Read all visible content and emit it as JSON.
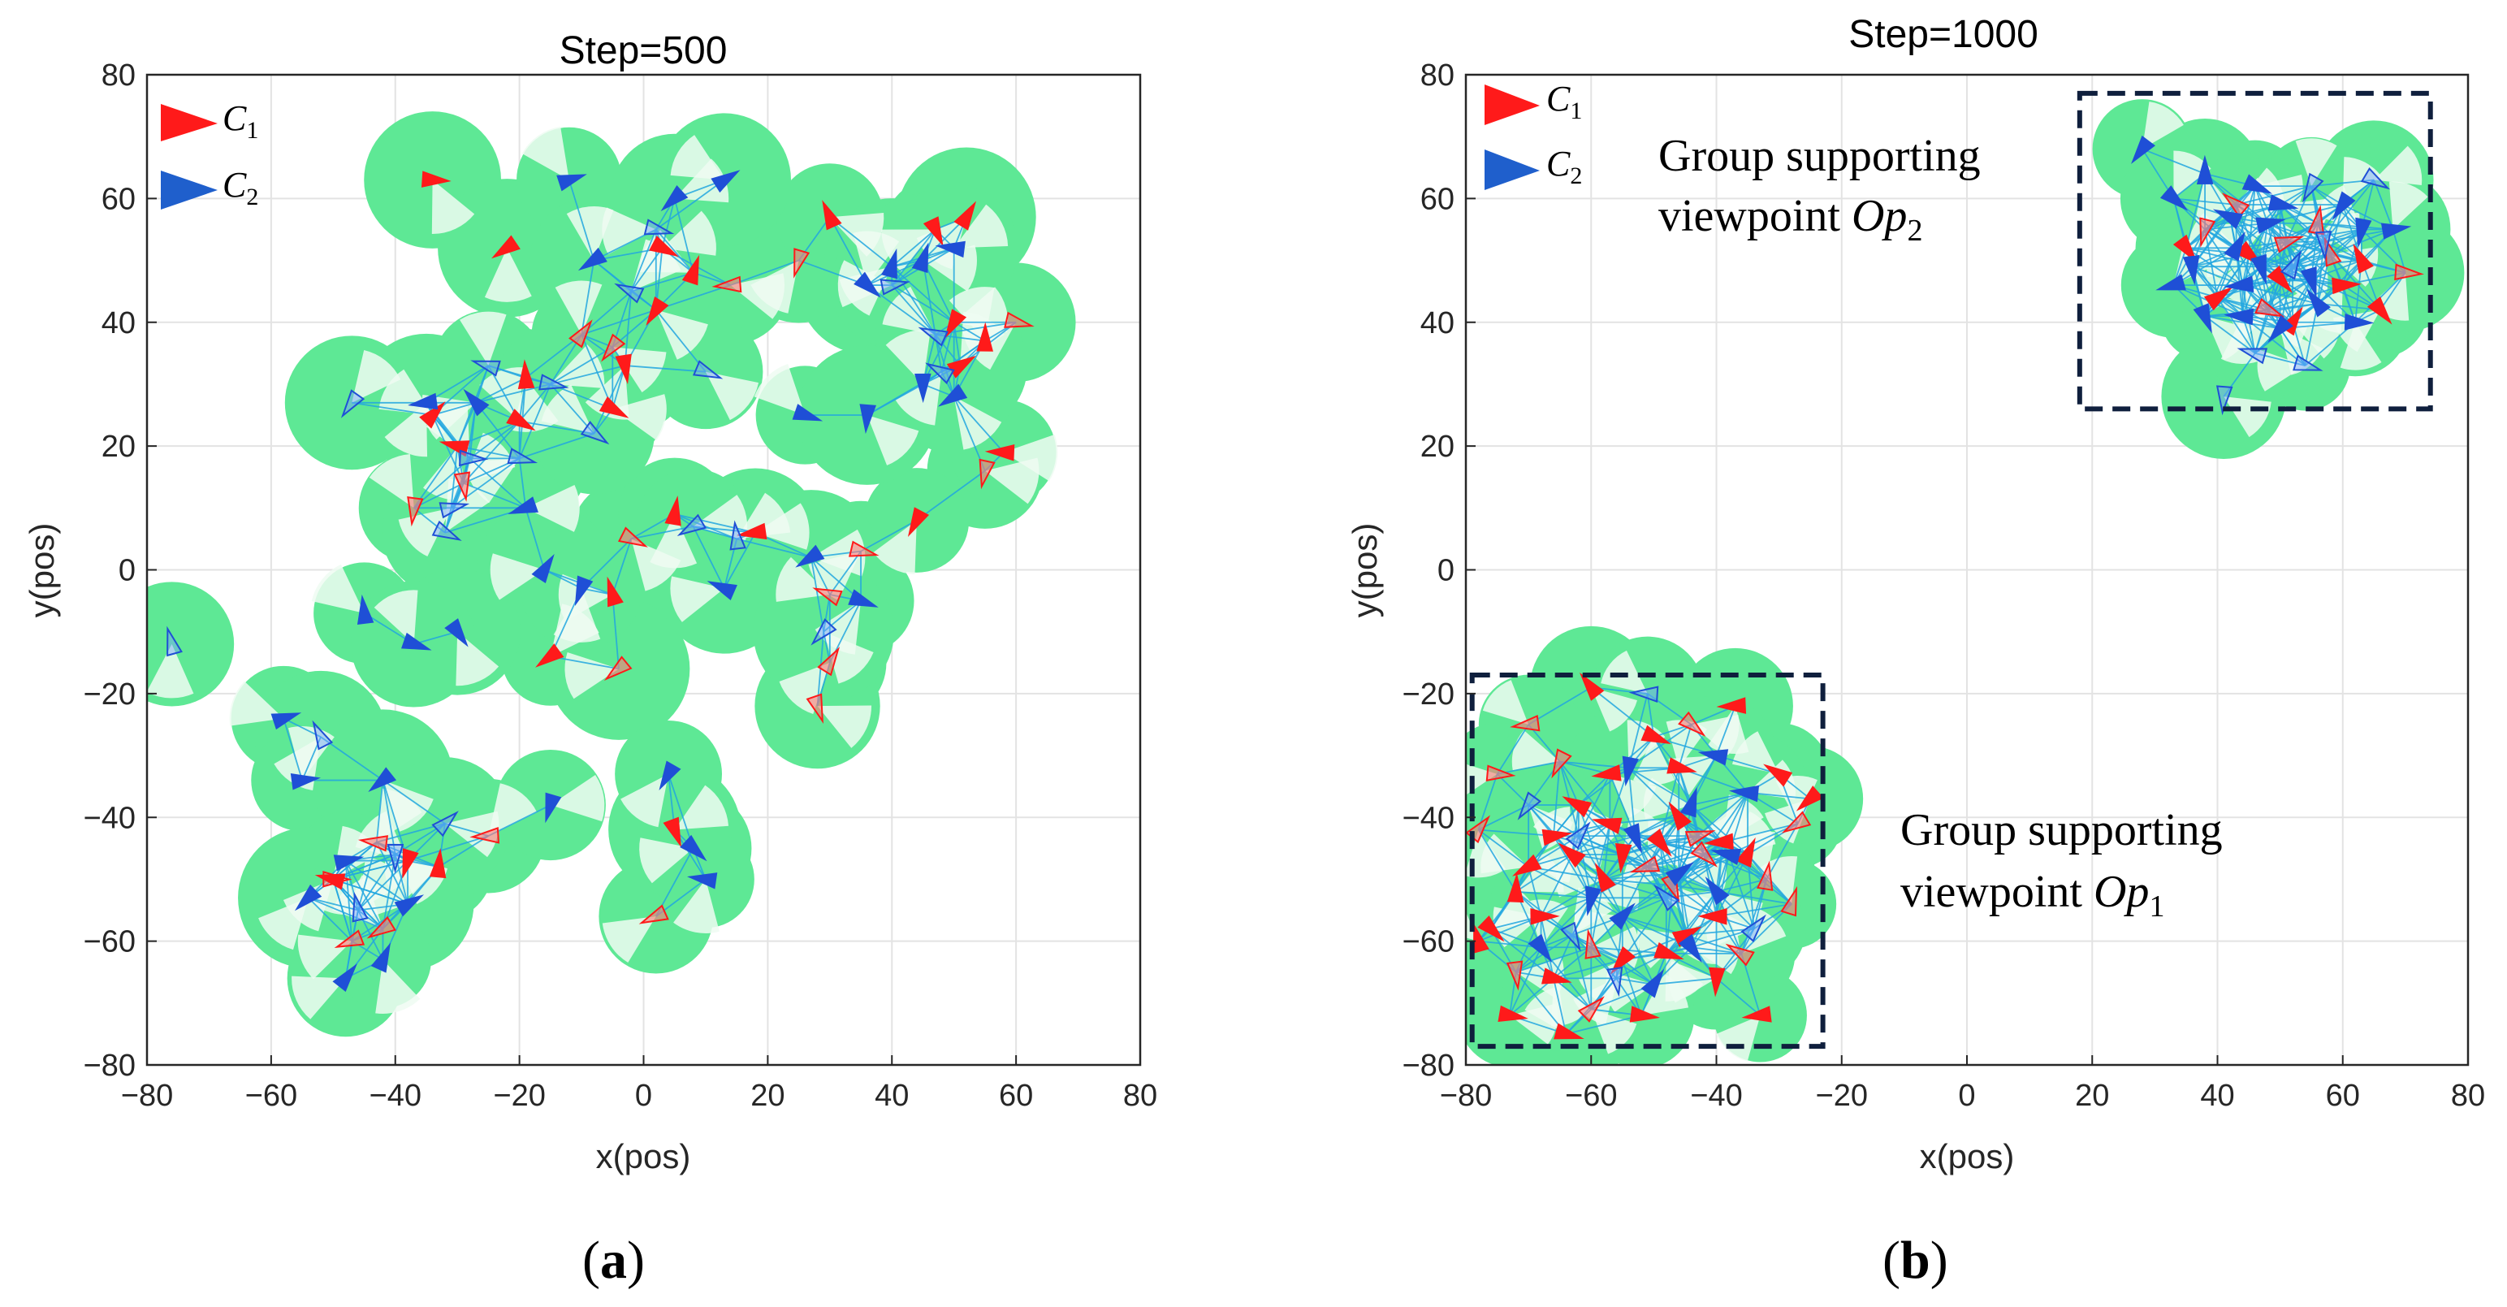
{
  "chart_data": [
    {
      "type": "scatter",
      "panel_label": "(a)",
      "title": "Step=500",
      "xlabel": "x(pos)",
      "ylabel": "y(pos)",
      "xlim": [
        -80,
        80
      ],
      "ylim": [
        -80,
        80
      ],
      "xticks": [
        -80,
        -60,
        -40,
        -20,
        0,
        20,
        40,
        60,
        80
      ],
      "yticks": [
        -80,
        -60,
        -40,
        -20,
        0,
        20,
        40,
        60,
        80
      ],
      "grid": true,
      "legend_position": "top-left",
      "legend": [
        {
          "label": "C",
          "sub": "1",
          "color": "#ff1a1a"
        },
        {
          "label": "C",
          "sub": "2",
          "color": "#1f5fcc"
        }
      ],
      "series": [
        {
          "name": "C1",
          "points": [
            [
              -34,
              63
            ],
            [
              -22,
              52
            ],
            [
              -10,
              38
            ],
            [
              -5,
              36
            ],
            [
              2,
              42
            ],
            [
              3,
              52
            ],
            [
              8,
              48
            ],
            [
              14,
              46
            ],
            [
              25,
              50
            ],
            [
              30,
              57
            ],
            [
              47,
              55
            ],
            [
              52,
              57
            ],
            [
              50,
              40
            ],
            [
              55,
              37
            ],
            [
              60,
              40
            ],
            [
              -20,
              24
            ],
            [
              -30,
              20
            ],
            [
              -29,
              14
            ],
            [
              -37,
              10
            ],
            [
              -34,
              25
            ],
            [
              -19,
              31
            ],
            [
              -3,
              33
            ],
            [
              -5,
              26
            ],
            [
              51,
              33
            ],
            [
              55,
              16
            ],
            [
              58,
              19
            ],
            [
              -2,
              5
            ],
            [
              5,
              9
            ],
            [
              18,
              6
            ],
            [
              30,
              -4
            ],
            [
              35,
              3
            ],
            [
              44,
              8
            ],
            [
              -5,
              -4
            ],
            [
              -15,
              -14
            ],
            [
              -4,
              -16
            ],
            [
              30,
              -15
            ],
            [
              28,
              -22
            ],
            [
              -50,
              -50
            ],
            [
              -38,
              -47
            ],
            [
              -33,
              -48
            ],
            [
              -25,
              -43
            ],
            [
              -42,
              -58
            ],
            [
              2,
              -56
            ],
            [
              5,
              -42
            ],
            [
              -43,
              -44
            ],
            [
              -50,
              -50
            ],
            [
              -47,
              -60
            ]
          ]
        },
        {
          "name": "C2",
          "points": [
            [
              -12,
              63
            ],
            [
              -8,
              50
            ],
            [
              -2,
              45
            ],
            [
              2,
              55
            ],
            [
              5,
              60
            ],
            [
              13,
              63
            ],
            [
              36,
              46
            ],
            [
              40,
              49
            ],
            [
              45,
              50
            ],
            [
              50,
              52
            ],
            [
              40,
              46
            ],
            [
              47,
              38
            ],
            [
              48,
              32
            ],
            [
              45,
              30
            ],
            [
              -25,
              33
            ],
            [
              -27,
              27
            ],
            [
              -31,
              10
            ],
            [
              -32,
              6
            ],
            [
              -28,
              18
            ],
            [
              -19,
              10
            ],
            [
              -35,
              27
            ],
            [
              -20,
              18
            ],
            [
              -15,
              30
            ],
            [
              -8,
              22
            ],
            [
              10,
              32
            ],
            [
              26,
              25
            ],
            [
              36,
              25
            ],
            [
              50,
              28
            ],
            [
              -16,
              0
            ],
            [
              -10,
              -3
            ],
            [
              8,
              7
            ],
            [
              15,
              5
            ],
            [
              13,
              -3
            ],
            [
              27,
              2
            ],
            [
              35,
              -5
            ],
            [
              29,
              -10
            ],
            [
              -45,
              -7
            ],
            [
              -30,
              -10
            ],
            [
              -37,
              -12
            ],
            [
              -76,
              -12
            ],
            [
              -47,
              27
            ],
            [
              -58,
              -24
            ],
            [
              -52,
              -27
            ],
            [
              -55,
              -34
            ],
            [
              -42,
              -34
            ],
            [
              -48,
              -47
            ],
            [
              -54,
              -53
            ],
            [
              -46,
              -55
            ],
            [
              -38,
              -54
            ],
            [
              -32,
              -41
            ],
            [
              -40,
              -46
            ],
            [
              -48,
              -66
            ],
            [
              -42,
              -63
            ],
            [
              4,
              -33
            ],
            [
              8,
              -45
            ],
            [
              10,
              -50
            ],
            [
              -15,
              -38
            ]
          ]
        }
      ]
    },
    {
      "type": "scatter",
      "panel_label": "(b)",
      "title": "Step=1000",
      "xlabel": "x(pos)",
      "ylabel": "y(pos)",
      "xlim": [
        -80,
        80
      ],
      "ylim": [
        -80,
        80
      ],
      "xticks": [
        -80,
        -60,
        -40,
        -20,
        0,
        20,
        40,
        60,
        80
      ],
      "yticks": [
        -80,
        -60,
        -40,
        -20,
        0,
        20,
        40,
        60,
        80
      ],
      "grid": true,
      "legend_position": "top-left",
      "legend": [
        {
          "label": "C",
          "sub": "1",
          "color": "#ff1a1a"
        },
        {
          "label": "C",
          "sub": "2",
          "color": "#1f5fcc"
        }
      ],
      "annotations": [
        {
          "text_line1": "Group supporting",
          "text_line2": "viewpoint ",
          "italic": "Op",
          "sub": "2",
          "box_x": [
            18,
            74
          ],
          "box_y": [
            26,
            77
          ]
        },
        {
          "text_line1": "Group supporting",
          "text_line2": "viewpoint ",
          "italic": "Op",
          "sub": "1",
          "box_x": [
            -79,
            -23
          ],
          "box_y": [
            -77,
            -17
          ]
        }
      ],
      "series": [
        {
          "name": "C1",
          "points": [
            [
              -60,
              -19
            ],
            [
              -70,
              -25
            ],
            [
              -75,
              -33
            ],
            [
              -78,
              -42
            ],
            [
              -62,
              -38
            ],
            [
              -57,
              -33
            ],
            [
              -50,
              -27
            ],
            [
              -44,
              -25
            ],
            [
              -37,
              -22
            ],
            [
              -30,
              -33
            ],
            [
              -27,
              -41
            ],
            [
              -25,
              -37
            ],
            [
              -32,
              -50
            ],
            [
              -35,
              -46
            ],
            [
              -39,
              -44
            ],
            [
              -43,
              -43
            ],
            [
              -46,
              -40
            ],
            [
              -49,
              -44
            ],
            [
              -51,
              -48
            ],
            [
              -55,
              -46
            ],
            [
              -58,
              -50
            ],
            [
              -63,
              -46
            ],
            [
              -66,
              -43
            ],
            [
              -70,
              -48
            ],
            [
              -72,
              -52
            ],
            [
              -76,
              -58
            ],
            [
              -78,
              -60
            ],
            [
              -72,
              -65
            ],
            [
              -66,
              -66
            ],
            [
              -60,
              -71
            ],
            [
              -55,
              -63
            ],
            [
              -48,
              -62
            ],
            [
              -40,
              -66
            ],
            [
              -33,
              -72
            ],
            [
              -40,
              -56
            ],
            [
              -47,
              -51
            ],
            [
              -45,
              -59
            ],
            [
              -60,
              -61
            ],
            [
              -68,
              -56
            ],
            [
              -73,
              -72
            ],
            [
              -64,
              -75
            ],
            [
              -52,
              -72
            ],
            [
              -42,
              -46
            ],
            [
              -28,
              -54
            ],
            [
              -36,
              -62
            ],
            [
              -57,
              -41
            ],
            [
              -65,
              -31
            ],
            [
              -46,
              -32
            ],
            [
              43,
              59
            ],
            [
              51,
              53
            ],
            [
              58,
              51
            ],
            [
              63,
              50
            ],
            [
              70,
              48
            ],
            [
              40,
              44
            ],
            [
              48,
              42
            ],
            [
              52,
              40
            ],
            [
              60,
              46
            ],
            [
              45,
              51
            ],
            [
              56,
              56
            ],
            [
              38,
              55
            ],
            [
              35,
              52
            ],
            [
              66,
              42
            ],
            [
              50,
              47
            ]
          ]
        },
        {
          "name": "C2",
          "points": [
            [
              -51,
              -20
            ],
            [
              -54,
              -32
            ],
            [
              -62,
              -43
            ],
            [
              -40,
              -30
            ],
            [
              -35,
              -36
            ],
            [
              -44,
              -38
            ],
            [
              -38,
              -46
            ],
            [
              -53,
              -43
            ],
            [
              -60,
              -53
            ],
            [
              -55,
              -56
            ],
            [
              -48,
              -53
            ],
            [
              -40,
              -52
            ],
            [
              -34,
              -58
            ],
            [
              -63,
              -59
            ],
            [
              -56,
              -66
            ],
            [
              -50,
              -67
            ],
            [
              -44,
              -61
            ],
            [
              -70,
              -38
            ],
            [
              -68,
              -61
            ],
            [
              -46,
              -49
            ],
            [
              28,
              68
            ],
            [
              33,
              60
            ],
            [
              38,
              64
            ],
            [
              42,
              57
            ],
            [
              46,
              62
            ],
            [
              50,
              59
            ],
            [
              55,
              62
            ],
            [
              60,
              59
            ],
            [
              65,
              63
            ],
            [
              68,
              55
            ],
            [
              63,
              55
            ],
            [
              57,
              53
            ],
            [
              52,
              49
            ],
            [
              47,
              49
            ],
            [
              43,
              52
            ],
            [
              36,
              49
            ],
            [
              33,
              46
            ],
            [
              38,
              41
            ],
            [
              44,
              41
            ],
            [
              50,
              39
            ],
            [
              56,
              43
            ],
            [
              62,
              40
            ],
            [
              41,
              28
            ],
            [
              46,
              35
            ],
            [
              54,
              33
            ],
            [
              44,
              46
            ],
            [
              55,
              47
            ],
            [
              48,
              56
            ]
          ]
        }
      ]
    }
  ]
}
